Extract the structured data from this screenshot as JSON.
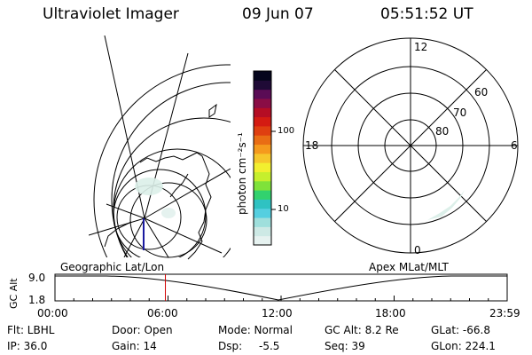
{
  "header": {
    "instrument": "Ultraviolet Imager",
    "date": "09 Jun 07",
    "time": "05:51:52 UT"
  },
  "colorbar": {
    "unit": "photon cm⁻²s⁻¹",
    "tick_100": "100",
    "tick_10": "10",
    "colors": [
      "#e6f2f0",
      "#cde9e5",
      "#9fdfdc",
      "#55cfe0",
      "#2fc2c2",
      "#32d26e",
      "#7fe23a",
      "#c6ef2d",
      "#f2ef2f",
      "#f6c72b",
      "#f59a1d",
      "#e96d14",
      "#df3f10",
      "#d41b12",
      "#b50d24",
      "#8a0d45",
      "#5a0c55",
      "#1f0a36",
      "#05051c"
    ]
  },
  "polar": {
    "label_12": "12",
    "label_18": "18",
    "label_6": "6",
    "label_0": "0",
    "lat_60": "60",
    "lat_70": "70",
    "lat_80": "80"
  },
  "timeline": {
    "left_label": "Geographic Lat/Lon",
    "right_label": "Apex MLat/MLT",
    "y_axis_label": "GC Alt",
    "y_top": "9.0",
    "y_bottom": "1.8",
    "ticks": [
      "00:00",
      "06:00",
      "12:00",
      "18:00",
      "23:59"
    ],
    "current_time_hours": 5.86,
    "marker_color": "#d00000"
  },
  "info": {
    "flt": "Flt: LBHL",
    "ip": "IP: 36.0",
    "door": "Door: Open",
    "gain": "Gain: 14",
    "mode": "Mode: Normal",
    "dsp_label": "Dsp:",
    "dsp_value": "-5.5",
    "gc_alt": "GC Alt: 8.2 Re",
    "seq": "Seq: 39",
    "glat": "GLat: -66.8",
    "glon": "GLon: 224.1"
  }
}
